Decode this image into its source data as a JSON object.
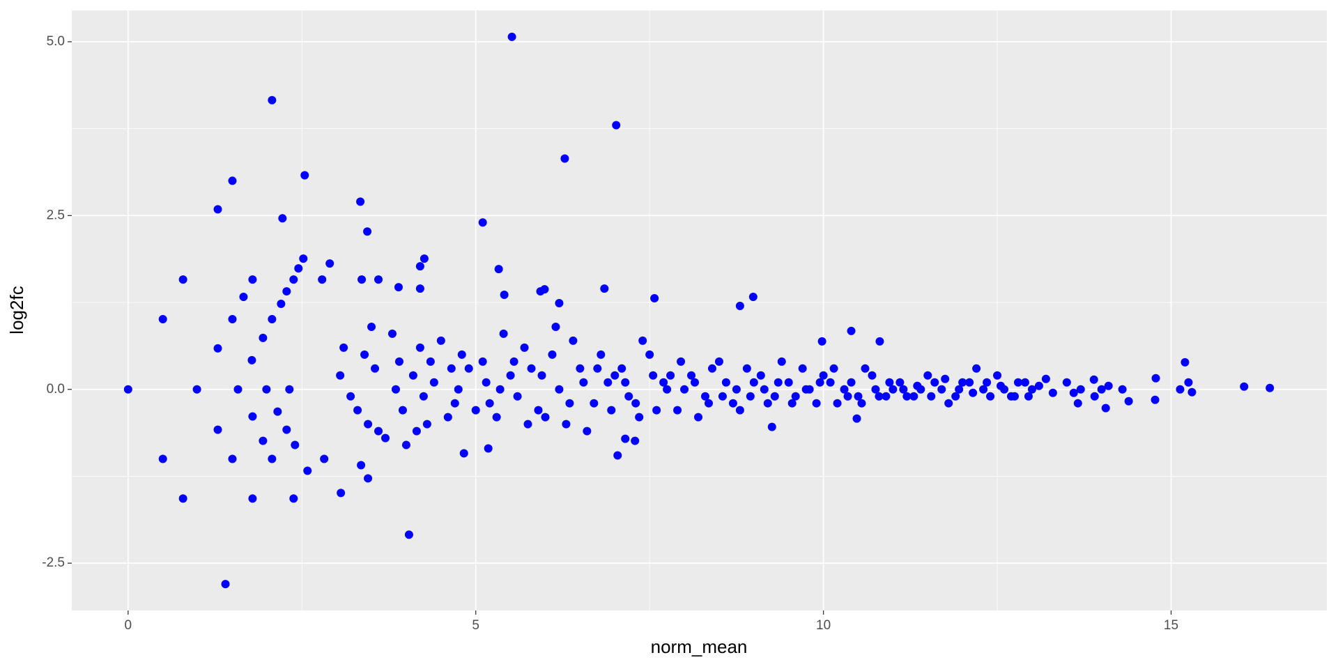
{
  "chart_data": {
    "type": "scatter",
    "x_label": "norm_mean",
    "y_label": "log2fc",
    "color": "#0000ff",
    "background": "#ebebeb",
    "grid": true,
    "xlim": [
      -0.81,
      17.24
    ],
    "ylim": [
      -3.18,
      5.45
    ],
    "xticks": [
      0,
      5,
      10,
      15
    ],
    "yticks": [
      -2.5,
      {
        "value": 0,
        "label": "0.0"
      },
      2.5,
      {
        "value": 5,
        "label": "5.0"
      }
    ],
    "xminor": [
      2.5,
      7.5,
      12.5
    ],
    "yminor": [
      -1.25,
      1.25,
      3.75
    ],
    "x": [
      0,
      5.52,
      2.07,
      7.02,
      1.5,
      2.54,
      6.28,
      1.29,
      2.22,
      3.34,
      3.44,
      5.1,
      0.79,
      0.5,
      1.66,
      1.79,
      2.52,
      2.9,
      2.79,
      2.38,
      2.45,
      2.28,
      2.2,
      1.5,
      2.07,
      1.29,
      1.78,
      1.94,
      1.58,
      0.99,
      1.99,
      2.32,
      0.5,
      0.79,
      1.4,
      1.29,
      1.5,
      1.79,
      1.79,
      1.94,
      2.07,
      2.15,
      2.38,
      2.28,
      2.4,
      2.58,
      2.82,
      3.06,
      3.35,
      3.45,
      4.04,
      3.36,
      3.6,
      3.89,
      4.2,
      4.26,
      4.2,
      5.33,
      5.41,
      5.93,
      5.99,
      6.85,
      6.2,
      7.57,
      8.99,
      8.8,
      9.98,
      10.4,
      10.81,
      10.48,
      9.26,
      7.04,
      7.29,
      7.15,
      4.83,
      5.18,
      15.2,
      15.13,
      16.05,
      16.42,
      14.78,
      15.25,
      15.3,
      14.77,
      13.66,
      14.06,
      14.39,
      13.89,
      3.1,
      3.3,
      3.5,
      3.7,
      3.9,
      4.1,
      4.3,
      4.5,
      4.7,
      4.9,
      3.2,
      3.4,
      3.6,
      3.8,
      4.0,
      4.2,
      4.4,
      4.6,
      4.8,
      5.0,
      3.05,
      3.45,
      3.85,
      4.25,
      4.65,
      3.55,
      3.95,
      4.35,
      4.75,
      4.15,
      5.1,
      5.3,
      5.5,
      5.7,
      5.9,
      6.1,
      6.3,
      6.5,
      6.7,
      6.9,
      5.2,
      5.4,
      5.6,
      5.8,
      6.0,
      6.2,
      6.4,
      6.6,
      6.8,
      7.0,
      5.15,
      5.55,
      5.95,
      6.35,
      6.75,
      5.35,
      5.75,
      6.15,
      6.55,
      6.95,
      7.1,
      7.3,
      7.5,
      7.7,
      7.9,
      8.1,
      8.3,
      8.5,
      8.7,
      8.9,
      7.2,
      7.4,
      7.6,
      7.8,
      8.0,
      8.2,
      8.4,
      8.6,
      8.8,
      9.0,
      7.15,
      7.55,
      7.95,
      8.35,
      8.75,
      7.35,
      7.75,
      8.15,
      8.55,
      8.95,
      9.1,
      9.3,
      9.5,
      9.7,
      9.9,
      10.1,
      10.3,
      10.5,
      10.7,
      10.9,
      9.2,
      9.4,
      9.6,
      9.8,
      10.0,
      10.2,
      10.4,
      10.6,
      10.8,
      11.0,
      9.15,
      9.55,
      9.95,
      10.35,
      10.75,
      9.35,
      9.75,
      10.15,
      10.55,
      10.95,
      11.1,
      11.3,
      11.5,
      11.7,
      11.9,
      12.1,
      12.3,
      12.5,
      12.7,
      12.9,
      11.2,
      11.4,
      11.6,
      11.8,
      12.0,
      12.2,
      12.4,
      12.6,
      12.8,
      13.0,
      11.15,
      11.55,
      11.95,
      12.35,
      12.75,
      11.35,
      11.75,
      12.15,
      12.55,
      12.95,
      13.1,
      13.3,
      13.5,
      13.7,
      13.9,
      14.1,
      14.3,
      13.2,
      13.6,
      14.0
    ],
    "values": [
      0,
      5.07,
      4.16,
      3.8,
      3.0,
      3.08,
      3.32,
      2.59,
      2.46,
      2.7,
      2.27,
      2.4,
      1.58,
      1.01,
      1.33,
      1.58,
      1.88,
      1.81,
      1.58,
      1.58,
      1.74,
      1.41,
      1.23,
      1.01,
      1.01,
      0.59,
      0.42,
      0.74,
      0,
      0,
      0,
      0,
      -1.0,
      -1.57,
      -2.8,
      -0.58,
      -1.0,
      -0.39,
      -1.57,
      -0.74,
      -1.0,
      -0.32,
      -1.57,
      -0.58,
      -0.8,
      -1.17,
      -1.0,
      -1.49,
      -1.09,
      -1.28,
      -2.09,
      1.58,
      1.58,
      1.47,
      1.45,
      1.88,
      1.77,
      1.73,
      1.36,
      1.41,
      1.44,
      1.45,
      1.24,
      1.31,
      1.33,
      1.2,
      0.69,
      0.84,
      0.69,
      -0.42,
      -0.54,
      -0.95,
      -0.74,
      -0.71,
      -0.92,
      -0.85,
      0.39,
      0,
      0.04,
      0.02,
      0.16,
      0.1,
      -0.04,
      -0.15,
      -0.2,
      -0.27,
      -0.17,
      0.14,
      0.6,
      -0.3,
      0.9,
      -0.7,
      0.4,
      0.2,
      -0.5,
      0.7,
      -0.2,
      0.3,
      -0.1,
      0.5,
      -0.6,
      0.8,
      -0.8,
      0.6,
      0.1,
      -0.4,
      0.5,
      -0.3,
      0.2,
      -0.5,
      0.0,
      -0.1,
      0.3,
      0.3,
      -0.3,
      0.4,
      0.0,
      -0.6,
      0.4,
      -0.4,
      0.2,
      0.6,
      -0.3,
      0.5,
      -0.5,
      0.3,
      -0.2,
      0.1,
      -0.2,
      0.8,
      -0.1,
      0.3,
      -0.4,
      0.0,
      0.7,
      -0.6,
      0.5,
      0.2,
      0.1,
      0.4,
      0.2,
      -0.2,
      0.3,
      0.0,
      -0.5,
      0.9,
      0.1,
      -0.3,
      0.3,
      -0.2,
      0.5,
      0.1,
      -0.3,
      0.2,
      -0.1,
      0.4,
      -0.2,
      0.3,
      -0.1,
      0.7,
      -0.3,
      0.2,
      0.0,
      -0.4,
      0.3,
      0.1,
      -0.3,
      0.1,
      0.1,
      0.2,
      0.4,
      -0.2,
      0.0,
      -0.4,
      0.0,
      0.1,
      -0.1,
      -0.1,
      0.2,
      -0.1,
      0.1,
      0.3,
      -0.2,
      0.1,
      0.0,
      -0.1,
      0.2,
      -0.1,
      -0.2,
      0.4,
      -0.1,
      0.0,
      0.2,
      -0.2,
      0.1,
      0.3,
      -0.1,
      0.0,
      0.0,
      -0.2,
      0.1,
      -0.1,
      0.0,
      0.1,
      0.0,
      0.3,
      -0.2,
      0.1,
      0.1,
      -0.1,
      0.2,
      0.0,
      -0.1,
      0.1,
      0.0,
      0.2,
      -0.1,
      0.1,
      -0.1,
      0.0,
      0.1,
      -0.2,
      0.1,
      0.3,
      -0.1,
      0.0,
      0.1,
      0.0,
      0.0,
      -0.1,
      0.0,
      0.1,
      -0.1,
      0.05,
      0.15,
      -0.05,
      0.05,
      -0.1,
      0.05,
      -0.05,
      0.1,
      0.0,
      -0.1,
      0.05,
      0.0,
      0.15,
      -0.05,
      0.0
    ]
  }
}
